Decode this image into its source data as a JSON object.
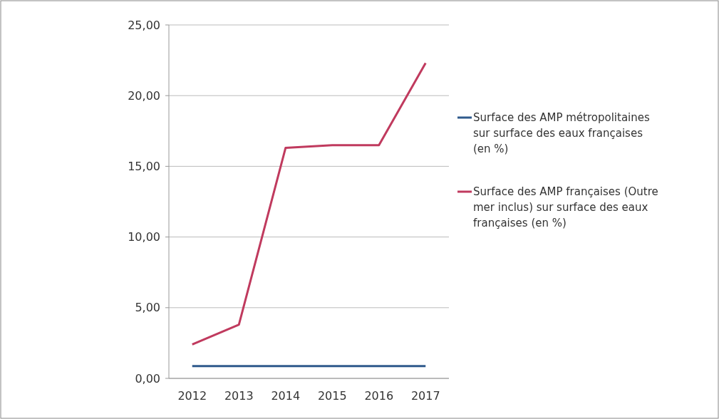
{
  "chart_data": {
    "type": "line",
    "categories": [
      "2012",
      "2013",
      "2014",
      "2015",
      "2016",
      "2017"
    ],
    "series": [
      {
        "name": "Surface des AMP métropolitaines sur surface des eaux françaises (en %)",
        "color": "#2f5a8c",
        "values": [
          0.87,
          0.87,
          0.87,
          0.87,
          0.87,
          0.87
        ]
      },
      {
        "name": "Surface des AMP françaises (Outre mer inclus) sur surface des eaux françaises (en %)",
        "color": "#c03a5e",
        "values": [
          2.4,
          3.8,
          16.3,
          16.5,
          16.5,
          22.3
        ]
      }
    ],
    "ylim": [
      0,
      25
    ],
    "yticks": [
      {
        "value": 0,
        "label": "0,00"
      },
      {
        "value": 5,
        "label": "5,00"
      },
      {
        "value": 10,
        "label": "10,00"
      },
      {
        "value": 15,
        "label": "15,00"
      },
      {
        "value": 20,
        "label": "20,00"
      },
      {
        "value": 25,
        "label": "25,00"
      }
    ],
    "grid": "y",
    "legend": "right",
    "marker": "none",
    "line_style": "solid"
  }
}
